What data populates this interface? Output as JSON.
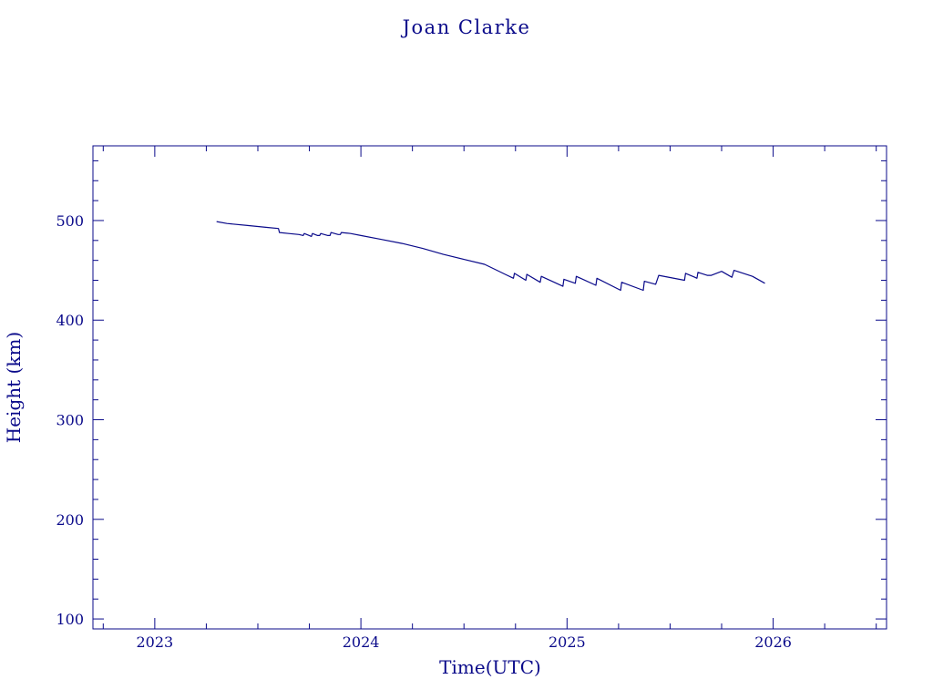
{
  "colors": {
    "ink": "#0a0a8a",
    "background": "#ffffff"
  },
  "chart_data": {
    "type": "line",
    "title": "Joan Clarke",
    "xlabel": "Time(UTC)",
    "ylabel": "Height (km)",
    "xlim": [
      2022.7,
      2026.55
    ],
    "ylim": [
      90,
      575
    ],
    "x_ticks": [
      2023,
      2024,
      2025,
      2026
    ],
    "x_tick_labels": [
      "2023",
      "2024",
      "2025",
      "2026"
    ],
    "x_minor_step": 0.25,
    "y_ticks": [
      100,
      200,
      300,
      400,
      500
    ],
    "y_tick_labels": [
      "100",
      "200",
      "300",
      "400",
      "500"
    ],
    "y_minor_step": 20,
    "grid": false,
    "legend": "none",
    "series": [
      {
        "x": [
          2023.3,
          2023.35,
          2023.45,
          2023.55,
          2023.6,
          2023.605,
          2023.65,
          2023.7,
          2023.72,
          2023.725,
          2023.75,
          2023.76,
          2023.765,
          2023.79,
          2023.8,
          2023.805,
          2023.84,
          2023.85,
          2023.855,
          2023.89,
          2023.9,
          2023.905,
          2023.95,
          2024.0,
          2024.1,
          2024.2,
          2024.3,
          2024.4,
          2024.5,
          2024.6,
          2024.65,
          2024.7,
          2024.74,
          2024.745,
          2024.8,
          2024.805,
          2024.87,
          2024.875,
          2024.98,
          2024.985,
          2025.04,
          2025.045,
          2025.14,
          2025.145,
          2025.26,
          2025.265,
          2025.37,
          2025.375,
          2025.43,
          2025.445,
          2025.57,
          2025.575,
          2025.62,
          2025.63,
          2025.635,
          2025.68,
          2025.7,
          2025.75,
          2025.8,
          2025.81,
          2025.9,
          2025.96
        ],
        "y": [
          499,
          497,
          495,
          493,
          492,
          488,
          487,
          486,
          485,
          487,
          485,
          484,
          487,
          485,
          485,
          487,
          485,
          485,
          488,
          486,
          486,
          488,
          487,
          485,
          481,
          477,
          472,
          466,
          461,
          456,
          451,
          446,
          442,
          447,
          440,
          446,
          438,
          444,
          434,
          441,
          437,
          444,
          435,
          442,
          430,
          438,
          430,
          439,
          436,
          445,
          440,
          447,
          443,
          442,
          448,
          445,
          445,
          449,
          443,
          450,
          444,
          437
        ]
      }
    ]
  }
}
